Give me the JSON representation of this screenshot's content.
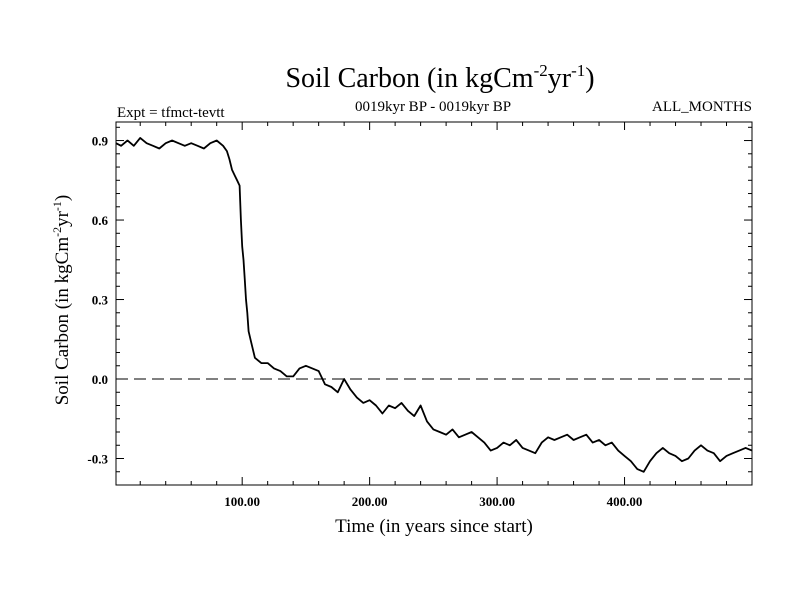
{
  "header": {
    "title_main": "Soil Carbon (in kgCm",
    "title_exp1": "-2",
    "title_mid": "yr",
    "title_exp2": "-1",
    "title_end": ")",
    "expt": "Expt = tfmct-tevtt",
    "period": "0019kyr BP - 0019kyr BP",
    "months": "ALL_MONTHS"
  },
  "chart_data": {
    "type": "line",
    "title": "Soil Carbon (in kgCm-2yr-1)",
    "xlabel": "Time (in years since start)",
    "ylabel": "Soil Carbon (in kgCm-2yr-1)",
    "ylabel_parts": {
      "main": "Soil Carbon (in kgCm",
      "exp1": "-2",
      "mid": "yr",
      "exp2": "-1",
      "end": ")"
    },
    "xlim": [
      1,
      500
    ],
    "ylim": [
      -0.4,
      0.97
    ],
    "x_ticks": [
      100,
      200,
      300,
      400
    ],
    "x_tick_labels": [
      "100.00",
      "200.00",
      "300.00",
      "400.00"
    ],
    "y_ticks": [
      0.9,
      0.6,
      0.3,
      0.0,
      -0.3
    ],
    "y_tick_labels": [
      "0.9",
      "0.6",
      "0.3",
      "0.0",
      "-0.3"
    ],
    "reference_line": {
      "y": 0.0,
      "style": "dashed"
    },
    "grid": false,
    "line_color": "#000000",
    "series": [
      {
        "x": [
          1,
          5,
          10,
          15,
          20,
          25,
          30,
          35,
          40,
          45,
          50,
          55,
          60,
          65,
          70,
          75,
          80,
          85,
          88,
          90,
          92,
          94,
          96,
          98,
          99,
          100,
          101,
          102,
          103,
          104,
          105,
          107,
          110,
          115,
          120,
          125,
          130,
          135,
          140,
          145,
          150,
          155,
          160,
          165,
          170,
          175,
          180,
          185,
          190,
          195,
          200,
          205,
          210,
          215,
          220,
          225,
          230,
          235,
          240,
          245,
          250,
          255,
          260,
          265,
          270,
          275,
          280,
          285,
          290,
          295,
          300,
          305,
          310,
          315,
          320,
          325,
          330,
          335,
          340,
          345,
          350,
          355,
          360,
          365,
          370,
          375,
          380,
          385,
          390,
          395,
          400,
          405,
          410,
          415,
          420,
          425,
          430,
          435,
          440,
          445,
          450,
          455,
          460,
          465,
          470,
          475,
          480,
          485,
          490,
          495,
          500
        ],
        "y": [
          0.89,
          0.88,
          0.9,
          0.88,
          0.91,
          0.89,
          0.88,
          0.87,
          0.89,
          0.9,
          0.89,
          0.88,
          0.89,
          0.88,
          0.87,
          0.89,
          0.9,
          0.88,
          0.86,
          0.83,
          0.79,
          0.77,
          0.75,
          0.73,
          0.6,
          0.5,
          0.45,
          0.38,
          0.3,
          0.25,
          0.18,
          0.14,
          0.08,
          0.06,
          0.06,
          0.04,
          0.03,
          0.01,
          0.01,
          0.04,
          0.05,
          0.04,
          0.03,
          -0.02,
          -0.03,
          -0.05,
          0.0,
          -0.04,
          -0.07,
          -0.09,
          -0.08,
          -0.1,
          -0.13,
          -0.1,
          -0.11,
          -0.09,
          -0.12,
          -0.14,
          -0.1,
          -0.16,
          -0.19,
          -0.2,
          -0.21,
          -0.19,
          -0.22,
          -0.21,
          -0.2,
          -0.22,
          -0.24,
          -0.27,
          -0.26,
          -0.24,
          -0.25,
          -0.23,
          -0.26,
          -0.27,
          -0.28,
          -0.24,
          -0.22,
          -0.23,
          -0.22,
          -0.21,
          -0.23,
          -0.22,
          -0.21,
          -0.24,
          -0.23,
          -0.25,
          -0.24,
          -0.27,
          -0.29,
          -0.31,
          -0.34,
          -0.35,
          -0.31,
          -0.28,
          -0.26,
          -0.28,
          -0.29,
          -0.31,
          -0.3,
          -0.27,
          -0.25,
          -0.27,
          -0.28,
          -0.31,
          -0.29,
          -0.28,
          -0.27,
          -0.26,
          -0.27
        ]
      }
    ]
  }
}
